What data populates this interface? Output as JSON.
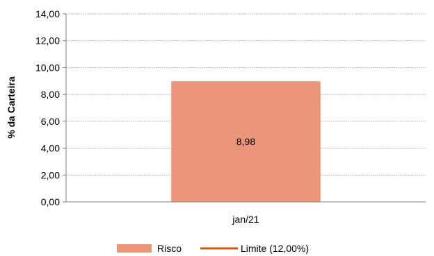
{
  "chart_data": {
    "type": "bar",
    "categories": [
      "jan/21"
    ],
    "series": [
      {
        "name": "Risco",
        "values": [
          8.98
        ],
        "color": "#e9967a"
      }
    ],
    "reference_lines": [
      {
        "name": "Limite (12,00%)",
        "value": 12.0,
        "color": "#c65911"
      }
    ],
    "data_labels": [
      "8,98"
    ],
    "ylabel": "% da Carteira",
    "ylim": [
      0,
      14
    ],
    "yticks": [
      0,
      2,
      4,
      6,
      8,
      10,
      12,
      14
    ],
    "ytick_labels": [
      "0,00",
      "2,00",
      "4,00",
      "6,00",
      "8,00",
      "10,00",
      "12,00",
      "14,00"
    ],
    "grid": true,
    "legend_position": "bottom"
  }
}
